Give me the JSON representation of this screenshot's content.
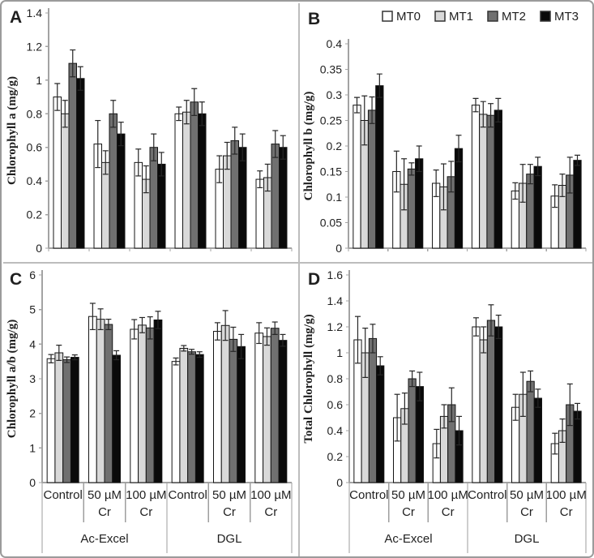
{
  "figure": {
    "panel_letters": [
      "A",
      "B",
      "C",
      "D"
    ],
    "group_labels": [
      "Ac-Excel",
      "DGL"
    ],
    "category_lines": [
      [
        "Control"
      ],
      [
        "50 µM",
        "Cr"
      ],
      [
        "100 µM",
        "Cr"
      ],
      [
        "Control"
      ],
      [
        "50 µM",
        "Cr"
      ],
      [
        "100 µM",
        "Cr"
      ]
    ]
  },
  "legend": {
    "position": "top-right-of-panel-B",
    "items": [
      {
        "label": "MT0",
        "color": "#ffffff"
      },
      {
        "label": "MT1",
        "color": "#d9d9d9"
      },
      {
        "label": "MT2",
        "color": "#707070"
      },
      {
        "label": "MT3",
        "color": "#0a0a0a"
      }
    ]
  },
  "colors": {
    "bar_stroke": "#141414",
    "error_bar": "#262626",
    "axis_line": "#a3a3a3",
    "divider_line": "#9e9e9e",
    "text": "#1f1f1f"
  },
  "chart_data": [
    {
      "panel": "A",
      "type": "bar",
      "title": "",
      "xlabel": "",
      "ylabel": "Chlorophyll a (mg/g)",
      "ylim": [
        0,
        1.4
      ],
      "ytick_step": 0.2,
      "grid": false,
      "show_x_labels": false,
      "categories": [
        "Control",
        "50 µM Cr",
        "100 µM Cr",
        "Control",
        "50 µM Cr",
        "100 µM Cr"
      ],
      "series": [
        {
          "name": "MT0",
          "values": [
            0.9,
            0.62,
            0.51,
            0.8,
            0.47,
            0.41
          ],
          "errors": [
            0.08,
            0.14,
            0.08,
            0.04,
            0.08,
            0.05
          ]
        },
        {
          "name": "MT1",
          "values": [
            0.8,
            0.51,
            0.41,
            0.81,
            0.55,
            0.42
          ],
          "errors": [
            0.08,
            0.07,
            0.08,
            0.07,
            0.08,
            0.08
          ]
        },
        {
          "name": "MT2",
          "values": [
            1.1,
            0.8,
            0.6,
            0.87,
            0.64,
            0.62
          ],
          "errors": [
            0.08,
            0.08,
            0.08,
            0.08,
            0.08,
            0.08
          ]
        },
        {
          "name": "MT3",
          "values": [
            1.01,
            0.68,
            0.5,
            0.8,
            0.6,
            0.6
          ],
          "errors": [
            0.07,
            0.07,
            0.07,
            0.07,
            0.08,
            0.07
          ]
        }
      ]
    },
    {
      "panel": "B",
      "type": "bar",
      "title": "",
      "xlabel": "",
      "ylabel": "Chlorophyll b (mg/g)",
      "ylim": [
        0,
        0.4
      ],
      "ytick_step": 0.05,
      "grid": false,
      "show_x_labels": false,
      "show_legend": true,
      "categories": [
        "Control",
        "50 µM Cr",
        "100 µM Cr",
        "Control",
        "50 µM Cr",
        "100 µM Cr"
      ],
      "series": [
        {
          "name": "MT0",
          "values": [
            0.28,
            0.15,
            0.127,
            0.28,
            0.112,
            0.102
          ],
          "errors": [
            0.015,
            0.04,
            0.026,
            0.013,
            0.016,
            0.022
          ]
        },
        {
          "name": "MT1",
          "values": [
            0.25,
            0.125,
            0.12,
            0.262,
            0.127,
            0.123
          ],
          "errors": [
            0.048,
            0.05,
            0.045,
            0.025,
            0.037,
            0.022
          ]
        },
        {
          "name": "MT2",
          "values": [
            0.27,
            0.155,
            0.14,
            0.26,
            0.145,
            0.143
          ],
          "errors": [
            0.026,
            0.012,
            0.03,
            0.023,
            0.019,
            0.035
          ]
        },
        {
          "name": "MT3",
          "values": [
            0.318,
            0.175,
            0.195,
            0.27,
            0.16,
            0.172
          ],
          "errors": [
            0.023,
            0.025,
            0.026,
            0.023,
            0.018,
            0.01
          ]
        }
      ]
    },
    {
      "panel": "C",
      "type": "bar",
      "title": "",
      "xlabel": "",
      "ylabel": "Chlorophyll a/b (mg/g)",
      "ylim": [
        0,
        6
      ],
      "ytick_step": 1,
      "grid": false,
      "show_x_labels": true,
      "categories": [
        "Control",
        "50 µM Cr",
        "100 µM Cr",
        "Control",
        "50 µM Cr",
        "100 µM Cr"
      ],
      "series": [
        {
          "name": "MT0",
          "values": [
            3.58,
            4.8,
            4.43,
            3.5,
            4.37,
            4.32
          ],
          "errors": [
            0.12,
            0.38,
            0.28,
            0.1,
            0.25,
            0.3
          ]
        },
        {
          "name": "MT1",
          "values": [
            3.75,
            4.72,
            4.55,
            3.88,
            4.54,
            4.22
          ],
          "errors": [
            0.22,
            0.3,
            0.22,
            0.08,
            0.43,
            0.25
          ]
        },
        {
          "name": "MT2",
          "values": [
            3.55,
            4.57,
            4.47,
            3.78,
            4.14,
            4.46
          ],
          "errors": [
            0.08,
            0.15,
            0.32,
            0.07,
            0.35,
            0.18
          ]
        },
        {
          "name": "MT3",
          "values": [
            3.62,
            3.68,
            4.7,
            3.7,
            3.93,
            4.11
          ],
          "errors": [
            0.07,
            0.13,
            0.25,
            0.08,
            0.35,
            0.17
          ]
        }
      ]
    },
    {
      "panel": "D",
      "type": "bar",
      "title": "",
      "xlabel": "",
      "ylabel": "Total Chlorophyll (mg/g)",
      "ylim": [
        0,
        1.6
      ],
      "ytick_step": 0.2,
      "grid": false,
      "show_x_labels": true,
      "categories": [
        "Control",
        "50 µM Cr",
        "100 µM Cr",
        "Control",
        "50 µM Cr",
        "100 µM Cr"
      ],
      "series": [
        {
          "name": "MT0",
          "values": [
            1.1,
            0.5,
            0.3,
            1.2,
            0.58,
            0.3
          ],
          "errors": [
            0.18,
            0.18,
            0.11,
            0.07,
            0.1,
            0.08
          ]
        },
        {
          "name": "MT1",
          "values": [
            1.0,
            0.57,
            0.51,
            1.1,
            0.68,
            0.4
          ],
          "errors": [
            0.19,
            0.12,
            0.09,
            0.1,
            0.17,
            0.09
          ]
        },
        {
          "name": "MT2",
          "values": [
            1.11,
            0.8,
            0.6,
            1.25,
            0.78,
            0.6
          ],
          "errors": [
            0.11,
            0.06,
            0.13,
            0.12,
            0.08,
            0.16
          ]
        },
        {
          "name": "MT3",
          "values": [
            0.9,
            0.74,
            0.4,
            1.2,
            0.65,
            0.55
          ],
          "errors": [
            0.07,
            0.11,
            0.11,
            0.09,
            0.07,
            0.06
          ]
        }
      ]
    }
  ]
}
